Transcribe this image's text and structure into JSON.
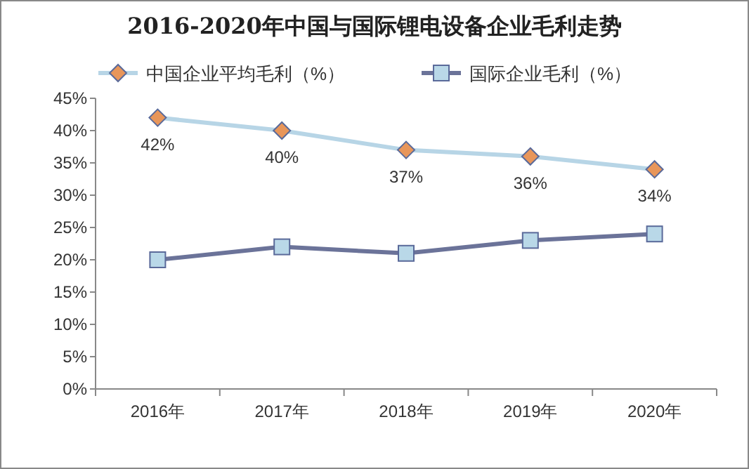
{
  "chart_data": {
    "type": "line",
    "title": "2016-2020年中国与国际锂电设备企业毛利走势",
    "categories": [
      "2016年",
      "2017年",
      "2018年",
      "2019年",
      "2020年"
    ],
    "series": [
      {
        "name": "中国企业平均毛利（%）",
        "color": "#b7d5e6",
        "colors": [
          "#e8965a",
          "#e8965a",
          "#e8965a",
          "#e8965a",
          "#e8965a"
        ],
        "marker": "diamond",
        "values": [
          42,
          40,
          37,
          36,
          34
        ],
        "value_labels": [
          "42%",
          "40%",
          "37%",
          "36%",
          "34%"
        ]
      },
      {
        "name": "国际企业毛利（%）",
        "color": "#6b7399",
        "colors": [
          "#b9d8e8",
          "#b9d8e8",
          "#b9d8e8",
          "#b9d8e8",
          "#b9d8e8"
        ],
        "marker": "square",
        "values": [
          20,
          22,
          21,
          23,
          24
        ]
      }
    ],
    "ylim": [
      0,
      45
    ],
    "yticks": [
      {
        "value": 0,
        "label": "0%"
      },
      {
        "value": 5,
        "label": "5%"
      },
      {
        "value": 10,
        "label": "10%"
      },
      {
        "value": 15,
        "label": "15%"
      },
      {
        "value": 20,
        "label": "20%"
      },
      {
        "value": 25,
        "label": "25%"
      },
      {
        "value": 30,
        "label": "30%"
      },
      {
        "value": 35,
        "label": "35%"
      },
      {
        "value": 40,
        "label": "40%"
      },
      {
        "value": 45,
        "label": "45%"
      }
    ],
    "legend": "top",
    "grid": false
  }
}
